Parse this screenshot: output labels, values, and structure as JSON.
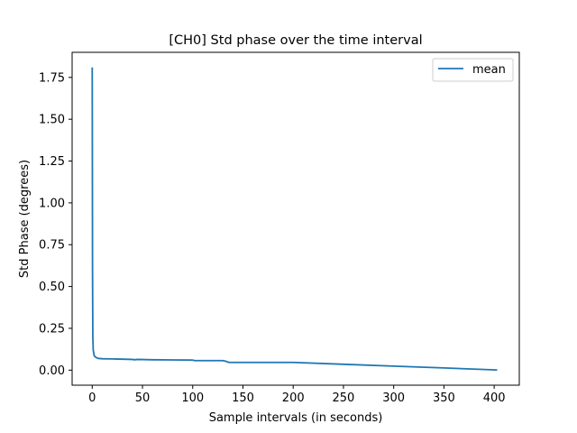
{
  "chart_data": {
    "type": "line",
    "title": "[CH0] Std phase over the time interval",
    "xlabel": "Sample intervals (in seconds)",
    "ylabel": "Std Phase (degrees)",
    "xlim": [
      -20,
      425
    ],
    "ylim": [
      -0.09,
      1.9
    ],
    "xticks": [
      0,
      50,
      100,
      150,
      200,
      250,
      300,
      350,
      400
    ],
    "yticks": [
      0.0,
      0.25,
      0.5,
      0.75,
      1.0,
      1.25,
      1.5,
      1.75
    ],
    "ytick_labels": [
      "0.00",
      "0.25",
      "0.50",
      "0.75",
      "1.00",
      "1.25",
      "1.50",
      "1.75"
    ],
    "grid": false,
    "legend_position": "top-right",
    "series": [
      {
        "name": "mean",
        "color": "#1f77b4",
        "x": [
          0,
          0.3,
          0.6,
          1,
          2,
          4,
          6,
          10,
          20,
          40,
          42,
          45,
          60,
          80,
          100,
          102,
          130,
          133,
          135,
          136,
          150,
          170,
          200,
          250,
          300,
          350,
          403
        ],
        "y": [
          1.81,
          0.6,
          0.2,
          0.12,
          0.085,
          0.075,
          0.07,
          0.068,
          0.067,
          0.064,
          0.062,
          0.064,
          0.062,
          0.061,
          0.06,
          0.057,
          0.057,
          0.053,
          0.048,
          0.046,
          0.046,
          0.046,
          0.046,
          0.035,
          0.024,
          0.013,
          0.001
        ]
      }
    ]
  }
}
